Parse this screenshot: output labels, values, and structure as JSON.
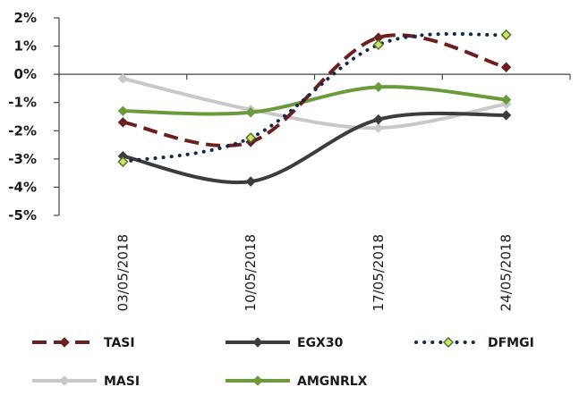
{
  "chart_data": {
    "type": "line",
    "categories": [
      "03/05/2018",
      "10/05/2018",
      "17/05/2018",
      "24/05/2018"
    ],
    "ylim": [
      -5,
      2
    ],
    "yticks": [
      2,
      1,
      0,
      -1,
      -2,
      -3,
      -4,
      -5
    ],
    "ytick_labels": [
      "2%",
      "1%",
      "0%",
      "-1%",
      "-2%",
      "-3%",
      "-4%",
      "-5%"
    ],
    "grid": false,
    "legend_position": "bottom",
    "series": [
      {
        "name": "TASI",
        "values": [
          -1.7,
          -2.4,
          1.3,
          0.25
        ],
        "color": "#6b1f1f",
        "style": "dashed",
        "marker": "diamond"
      },
      {
        "name": "EGX30",
        "values": [
          -2.9,
          -3.8,
          -1.6,
          -1.45
        ],
        "color": "#3c3c3c",
        "style": "solid",
        "marker": "diamond"
      },
      {
        "name": "DFMGI",
        "values": [
          -3.1,
          -2.25,
          1.05,
          1.4
        ],
        "color": "#13294b",
        "style": "dotted",
        "marker": "diamond-yellow"
      },
      {
        "name": "MASI",
        "values": [
          -0.15,
          -1.25,
          -1.9,
          -1.05
        ],
        "color": "#c8c8c8",
        "style": "solid",
        "marker": "diamond"
      },
      {
        "name": "AMGNRLX",
        "values": [
          -1.3,
          -1.35,
          -0.45,
          -0.9
        ],
        "color": "#6a9a3a",
        "style": "solid",
        "marker": "diamond"
      }
    ]
  }
}
